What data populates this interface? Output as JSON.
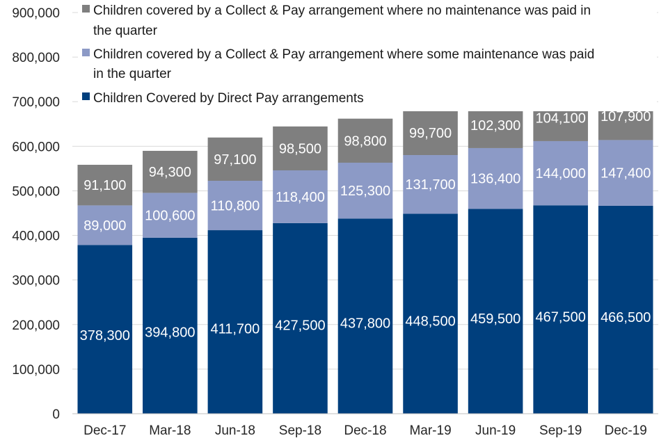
{
  "chart_data": {
    "type": "bar",
    "stacked": true,
    "categories": [
      "Dec-17",
      "Mar-18",
      "Jun-18",
      "Sep-18",
      "Dec-18",
      "Mar-19",
      "Jun-19",
      "Sep-19",
      "Dec-19"
    ],
    "series": [
      {
        "name": "Children Covered by Direct Pay arrangements",
        "color": "#003f7d",
        "values": [
          378300,
          394800,
          411700,
          427500,
          437800,
          448500,
          459500,
          467500,
          466500
        ],
        "labels": [
          "378,300",
          "394,800",
          "411,700",
          "427,500",
          "437,800",
          "448,500",
          "459,500",
          "467,500",
          "466,500"
        ]
      },
      {
        "name": "Children covered by a Collect & Pay arrangement where some maintenance was paid in the quarter",
        "color": "#8c9ac6",
        "values": [
          89000,
          100600,
          110800,
          118400,
          125300,
          131700,
          136400,
          144000,
          147400
        ],
        "labels": [
          "89,000",
          "100,600",
          "110,800",
          "118,400",
          "125,300",
          "131,700",
          "136,400",
          "144,000",
          "147,400"
        ]
      },
      {
        "name": "Children covered by a Collect & Pay arrangement where no maintenance was paid in the quarter",
        "color": "#7f7f7f",
        "values": [
          91100,
          94300,
          97100,
          98500,
          98800,
          99700,
          102300,
          104100,
          107900
        ],
        "labels": [
          "91,100",
          "94,300",
          "97,100",
          "98,500",
          "98,800",
          "99,700",
          "102,300",
          "104,100",
          "107,900"
        ]
      }
    ],
    "ylim": [
      0,
      900000
    ],
    "yticks": [
      "0",
      "100,000",
      "200,000",
      "300,000",
      "400,000",
      "500,000",
      "600,000",
      "700,000",
      "800,000",
      "900,000"
    ],
    "legend": [
      {
        "lines": [
          "Children covered by a Collect & Pay arrangement where no maintenance was paid in",
          "the quarter"
        ],
        "color": "#7f7f7f"
      },
      {
        "lines": [
          "Children covered by a Collect & Pay arrangement where some maintenance was paid",
          "in the quarter"
        ],
        "color": "#8c9ac6"
      },
      {
        "lines": [
          "Children Covered by Direct Pay arrangements"
        ],
        "color": "#003f7d"
      }
    ],
    "legend_position": "top-left",
    "grid": true,
    "title": "",
    "xlabel": "",
    "ylabel": ""
  }
}
